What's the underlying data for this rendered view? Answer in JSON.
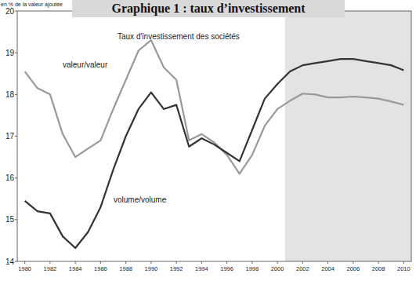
{
  "chart_data": {
    "type": "line",
    "title": "Graphique 1 : taux d’investissement",
    "subtitle": "Taux d'investissement des sociétés",
    "y_label": "en % de la valeur ajoutée",
    "x": [
      1980,
      1981,
      1982,
      1983,
      1984,
      1985,
      1986,
      1987,
      1988,
      1989,
      1990,
      1991,
      1992,
      1993,
      1994,
      1995,
      1996,
      1997,
      1998,
      1999,
      2000,
      2001,
      2002,
      2003,
      2004,
      2005,
      2006,
      2007,
      2008,
      2009,
      2010
    ],
    "series": [
      {
        "name": "valeur/valeur",
        "color": "#999999",
        "values": [
          18.55,
          18.15,
          18.0,
          17.05,
          16.5,
          16.7,
          16.9,
          17.65,
          18.35,
          19.05,
          19.3,
          18.65,
          18.35,
          16.9,
          17.05,
          16.85,
          16.55,
          16.1,
          16.55,
          17.25,
          17.65,
          17.85,
          18.02,
          18.0,
          17.93,
          17.93,
          17.95,
          17.93,
          17.9,
          17.83,
          17.75
        ]
      },
      {
        "name": "volume/volume",
        "color": "#333333",
        "values": [
          15.45,
          15.2,
          15.15,
          14.6,
          14.32,
          14.7,
          15.3,
          16.2,
          17.0,
          17.65,
          18.05,
          17.65,
          17.75,
          16.75,
          16.95,
          16.8,
          16.6,
          16.4,
          17.15,
          17.9,
          18.25,
          18.55,
          18.7,
          18.75,
          18.8,
          18.85,
          18.85,
          18.8,
          18.75,
          18.7,
          18.58
        ]
      }
    ],
    "shaded_x": [
      2000.6,
      2010.6
    ],
    "xlim": [
      1979.4,
      2010.6
    ],
    "xticks": [
      1980,
      1982,
      1984,
      1986,
      1988,
      1990,
      1992,
      1994,
      1996,
      1998,
      2000,
      2002,
      2004,
      2006,
      2008,
      2010
    ],
    "ylim": [
      14,
      20
    ],
    "yticks": [
      14,
      15,
      16,
      17,
      18,
      19,
      20
    ],
    "grid": false
  }
}
